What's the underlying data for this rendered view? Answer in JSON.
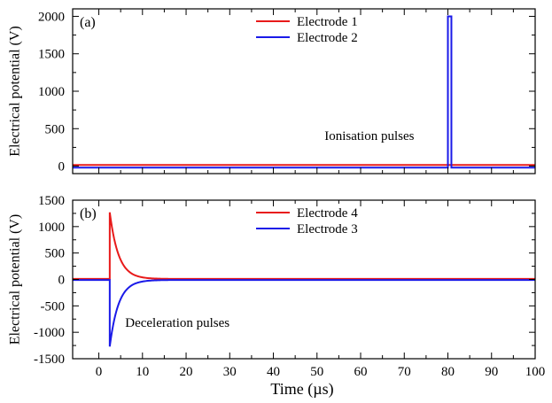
{
  "chart_data": [
    {
      "type": "line",
      "panel_label": "(a)",
      "xlabel": "",
      "ylabel": "Electrical potential (V)",
      "xlim": [
        -6,
        100
      ],
      "ylim": [
        -100,
        2100
      ],
      "yticks": [
        0,
        500,
        1000,
        1500,
        2000
      ],
      "ytick_labels": [
        "0",
        "500",
        "1000",
        "1500",
        "2000"
      ],
      "legend_position": "top-center",
      "annotation": {
        "text": "Ionisation pulses",
        "x": 62,
        "y": 350
      },
      "series": [
        {
          "name": "Electrode 1",
          "color": "#e81a1a",
          "x": [
            -6,
            100
          ],
          "y": [
            15,
            15
          ]
        },
        {
          "name": "Electrode 2",
          "color": "#1a1ae8",
          "x": [
            -6,
            80,
            80,
            80.8,
            80.8,
            100
          ],
          "y": [
            -20,
            -20,
            2000,
            2000,
            -20,
            -20
          ]
        }
      ]
    },
    {
      "type": "line",
      "panel_label": "(b)",
      "xlabel": "Time (µs)",
      "ylabel": "Electrical potential (V)",
      "xlim": [
        -6,
        100
      ],
      "ylim": [
        -1500,
        1500
      ],
      "xticks": [
        0,
        10,
        20,
        30,
        40,
        50,
        60,
        70,
        80,
        90,
        100
      ],
      "xtick_labels": [
        "0",
        "10",
        "20",
        "30",
        "40",
        "50",
        "60",
        "70",
        "80",
        "90",
        "100"
      ],
      "yticks": [
        -1500,
        -1000,
        -500,
        0,
        500,
        1000,
        1500
      ],
      "ytick_labels": [
        "-1500",
        "-1000",
        "-500",
        "0",
        "500",
        "1000",
        "1500"
      ],
      "legend_position": "top-center",
      "annotation": {
        "text": "Deceleration pulses",
        "x": 18,
        "y": -900
      },
      "series": [
        {
          "name": "Electrode 4",
          "color": "#e81a1a",
          "pulse": {
            "baseline": 10,
            "t0": 2.5,
            "peak": 1270,
            "tau": 2.0
          }
        },
        {
          "name": "Electrode 3",
          "color": "#1a1ae8",
          "pulse": {
            "baseline": -10,
            "t0": 2.5,
            "peak": -1270,
            "tau": 2.0
          }
        }
      ]
    }
  ],
  "colors": {
    "electrode_red": "#e81a1a",
    "electrode_blue": "#1a1ae8",
    "axes": "#000000"
  }
}
